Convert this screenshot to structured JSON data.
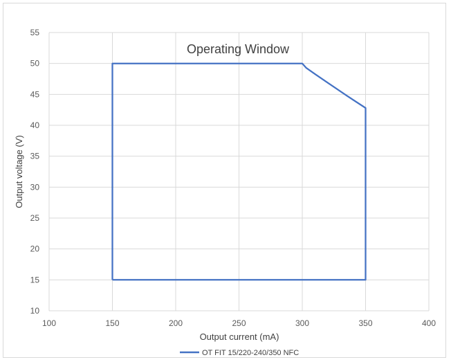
{
  "chart_data": {
    "type": "line",
    "title": "Operating Window",
    "xlabel": "Output current (mA)",
    "ylabel": "Output voltage (V)",
    "xlim": [
      100,
      400
    ],
    "ylim": [
      10,
      55
    ],
    "x_ticks": [
      100,
      150,
      200,
      250,
      300,
      350,
      400
    ],
    "y_ticks": [
      10,
      15,
      20,
      25,
      30,
      35,
      40,
      45,
      50,
      55
    ],
    "grid": true,
    "legend_position": "bottom",
    "series": [
      {
        "name": "OT FIT 15/220-240/350 NFC",
        "color": "#4472c4",
        "x": [
          150,
          150,
          300,
          303,
          310,
          320,
          335,
          350,
          350,
          150
        ],
        "y": [
          15,
          50,
          50,
          49.3,
          48.3,
          46.9,
          44.8,
          42.8,
          15,
          15
        ]
      }
    ]
  }
}
